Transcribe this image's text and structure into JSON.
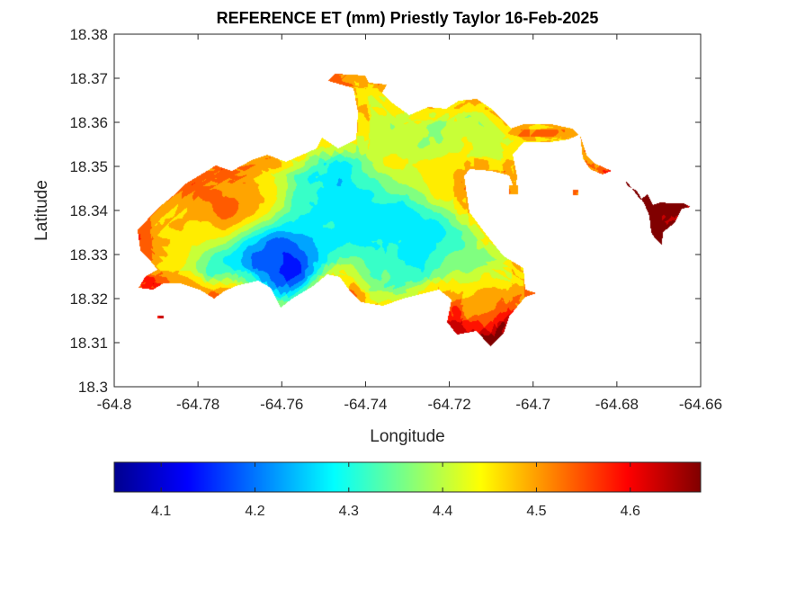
{
  "chart_data": {
    "type": "heatmap",
    "title": "REFERENCE ET (mm) Priestly Taylor 16-Feb-2025",
    "xlabel": "Longitude",
    "ylabel": "Latitude",
    "xlim": [
      -64.8,
      -64.66
    ],
    "ylim": [
      18.3,
      18.38
    ],
    "x_ticks": [
      "-64.8",
      "-64.78",
      "-64.76",
      "-64.74",
      "-64.72",
      "-64.7",
      "-64.68",
      "-64.66"
    ],
    "y_ticks": [
      "18.3",
      "18.31",
      "18.32",
      "18.33",
      "18.34",
      "18.35",
      "18.36",
      "18.37",
      "18.38"
    ],
    "colormap": "jet",
    "colorbar": {
      "orientation": "horizontal",
      "location": "bottom",
      "range": [
        4.05,
        4.675
      ],
      "ticks": [
        "4.1",
        "4.2",
        "4.3",
        "4.4",
        "4.5",
        "4.6"
      ]
    },
    "field_features": [
      {
        "lon": -64.759,
        "lat": 18.327,
        "value": 4.06
      },
      {
        "lon": -64.766,
        "lat": 18.329,
        "value": 4.15
      },
      {
        "lon": -64.778,
        "lat": 18.328,
        "value": 4.24
      },
      {
        "lon": -64.745,
        "lat": 18.344,
        "value": 4.23
      },
      {
        "lon": -64.738,
        "lat": 18.337,
        "value": 4.25
      },
      {
        "lon": -64.728,
        "lat": 18.332,
        "value": 4.22
      },
      {
        "lon": -64.752,
        "lat": 18.336,
        "value": 4.28
      },
      {
        "lon": -64.737,
        "lat": 18.328,
        "value": 4.33
      },
      {
        "lon": -64.713,
        "lat": 18.33,
        "value": 4.34
      },
      {
        "lon": -64.722,
        "lat": 18.322,
        "value": 4.36
      },
      {
        "lon": -64.729,
        "lat": 18.358,
        "value": 4.38
      },
      {
        "lon": -64.715,
        "lat": 18.358,
        "value": 4.43
      },
      {
        "lon": -64.72,
        "lat": 18.348,
        "value": 4.5
      },
      {
        "lon": -64.741,
        "lat": 18.366,
        "value": 4.44
      },
      {
        "lon": -64.735,
        "lat": 18.352,
        "value": 4.47
      },
      {
        "lon": -64.772,
        "lat": 18.341,
        "value": 4.62
      },
      {
        "lon": -64.778,
        "lat": 18.339,
        "value": 4.56
      },
      {
        "lon": -64.785,
        "lat": 18.331,
        "value": 4.48
      },
      {
        "lon": -64.789,
        "lat": 18.333,
        "value": 4.52
      },
      {
        "lon": -64.785,
        "lat": 18.321,
        "value": 4.54
      },
      {
        "lon": -64.773,
        "lat": 18.32,
        "value": 4.5
      },
      {
        "lon": -64.766,
        "lat": 18.345,
        "value": 4.47
      },
      {
        "lon": -64.717,
        "lat": 18.317,
        "value": 4.6
      },
      {
        "lon": -64.71,
        "lat": 18.312,
        "value": 4.64
      },
      {
        "lon": -64.712,
        "lat": 18.321,
        "value": 4.52
      },
      {
        "lon": -64.745,
        "lat": 18.322,
        "value": 4.44
      },
      {
        "lon": -64.7,
        "lat": 18.358,
        "value": 4.45
      },
      {
        "lon": -64.694,
        "lat": 18.357,
        "value": 4.36
      },
      {
        "lon": -64.67,
        "lat": 18.34,
        "value": 4.675
      },
      {
        "lon": -64.674,
        "lat": 18.344,
        "value": 4.6
      }
    ]
  }
}
